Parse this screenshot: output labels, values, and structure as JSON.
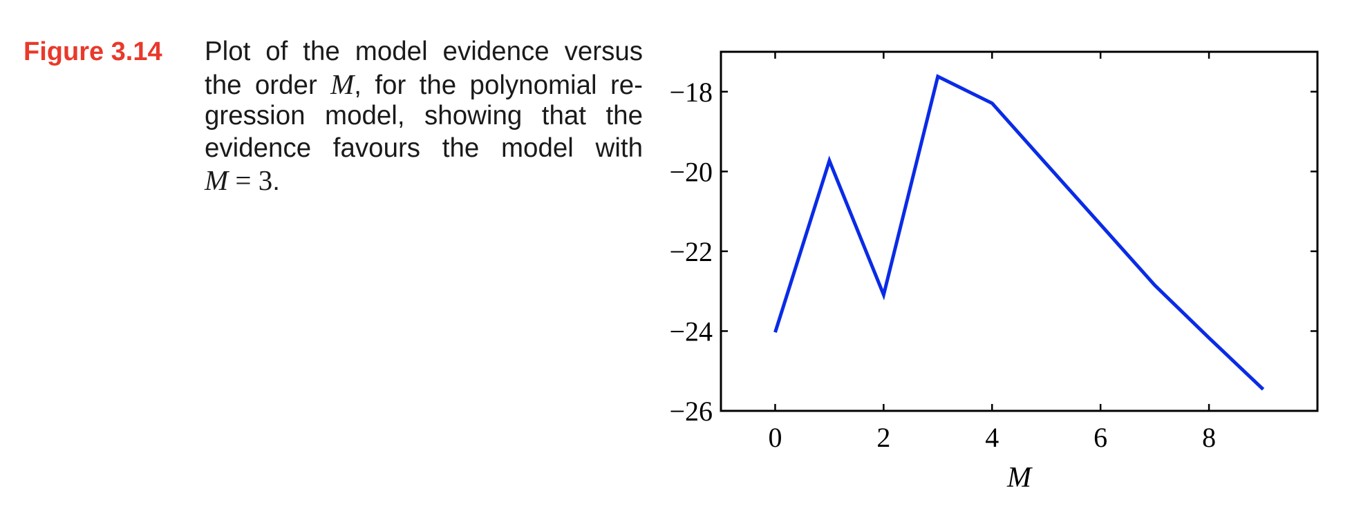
{
  "figure": {
    "label": "Figure 3.14",
    "label_color": "#e8392b",
    "caption_lines": [
      {
        "text": "Plot of the model evidence versus"
      },
      {
        "pre": "the order ",
        "math": "M",
        "post": ", for the polynomial re-"
      },
      {
        "text": "gression model, showing that the"
      },
      {
        "text": "evidence favours the model with"
      },
      {
        "math": "M",
        "post_math": " = 3",
        "post": "."
      }
    ]
  },
  "chart_data": {
    "type": "line",
    "title": "",
    "xlabel": "M",
    "ylabel": "",
    "x": [
      0,
      1,
      2,
      3,
      4,
      5,
      6,
      7,
      8,
      9
    ],
    "series": [
      {
        "name": "model evidence",
        "color": "#0a2be6",
        "values": [
          -24.03,
          -19.73,
          -23.09,
          -17.62,
          -18.29,
          -19.81,
          -21.33,
          -22.85,
          -24.17,
          -25.46
        ]
      }
    ],
    "xlim": [
      -1,
      10
    ],
    "ylim": [
      -26,
      -17
    ],
    "xticks": [
      0,
      2,
      4,
      6,
      8
    ],
    "xtick_labels": [
      "0",
      "2",
      "4",
      "6",
      "8"
    ],
    "yticks": [
      -18,
      -20,
      -22,
      -24,
      -26
    ],
    "ytick_labels": [
      "−18",
      "−20",
      "−22",
      "−24",
      "−26"
    ],
    "grid": false,
    "legend": null
  }
}
